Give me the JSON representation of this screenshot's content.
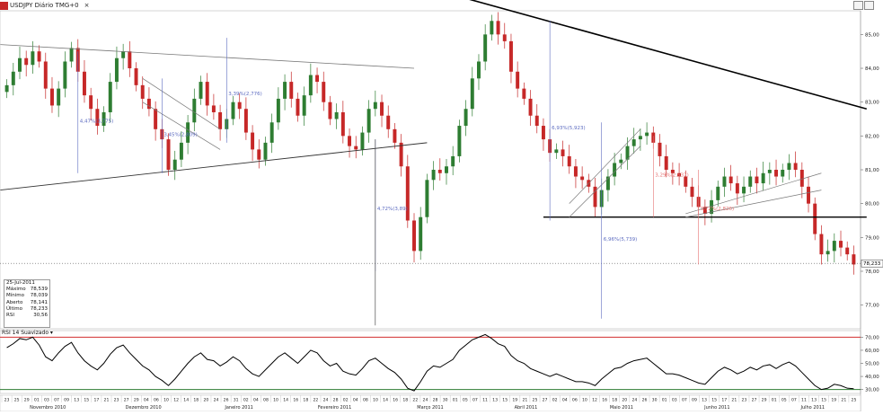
{
  "window": {
    "title": "USDJPY Diário TMG+0",
    "close_glyph": "×"
  },
  "colors": {
    "up": "#2e7d32",
    "down": "#c62828",
    "annot_blue": "#5c6bc0",
    "annot_red": "#e57373",
    "rsi_band": "#d32f2f",
    "rsi_low": "#2e7d32"
  },
  "info": {
    "date": "25-Jul-2011",
    "rows": [
      {
        "label": "Máximo",
        "value": "78,539"
      },
      {
        "label": "Mínimo",
        "value": "78,039"
      },
      {
        "label": "Aberto",
        "value": "78,141"
      },
      {
        "label": "Último",
        "value": "78,233"
      },
      {
        "label": "RSI",
        "value": "30,56"
      }
    ]
  },
  "rsi_panel": {
    "title": "RSI 14 Suavizado",
    "upper_band": "70,00",
    "lower_band": "30,00",
    "current": "30,56"
  },
  "chart_data": {
    "type": "candlestick",
    "title": "USDJPY Diário TMG+0",
    "price_axis": {
      "ticks": [
        "85,00",
        "84,00",
        "83,00",
        "82,00",
        "81,00",
        "80,00",
        "79,00",
        "78,00",
        "77,00"
      ],
      "last_label": "78,233",
      "range": [
        76.3,
        85.7
      ]
    },
    "rsi_axis": {
      "ticks": [
        "70,00",
        "60,00",
        "50,00",
        "40,00",
        "30,00"
      ],
      "range": [
        27,
        73
      ]
    },
    "day_labels": [
      "23",
      "25",
      "29",
      "01",
      "03",
      "07",
      "09",
      "13",
      "15",
      "17",
      "21",
      "23",
      "27",
      "29",
      "04",
      "06",
      "10",
      "12",
      "14",
      "18",
      "20",
      "24",
      "26",
      "31",
      "02",
      "04",
      "08",
      "10",
      "14",
      "16",
      "18",
      "22",
      "24",
      "28",
      "02",
      "04",
      "08",
      "10",
      "14",
      "16",
      "18",
      "22",
      "24",
      "28",
      "30",
      "01",
      "05",
      "07",
      "11",
      "13",
      "15",
      "19",
      "21",
      "25",
      "27",
      "02",
      "04",
      "06",
      "10",
      "12",
      "16",
      "18",
      "20",
      "24",
      "26",
      "30",
      "01",
      "03",
      "07",
      "09",
      "13",
      "15",
      "17",
      "21",
      "23",
      "27",
      "29",
      "01",
      "05",
      "07",
      "11",
      "13",
      "15",
      "19",
      "21",
      "25"
    ],
    "month_labels": [
      "Novembro 2010",
      "Dezembro 2010",
      "Janeiro 2011",
      "Fevereiro 2011",
      "Março 2011",
      "Abril 2011",
      "Maio 2011",
      "Junho 2011",
      "Julho 2011"
    ],
    "close": [
      83.5,
      83.9,
      84.3,
      84.1,
      84.5,
      84.2,
      83.4,
      82.9,
      83.4,
      84.2,
      84.6,
      83.9,
      83.2,
      82.8,
      82.3,
      82.7,
      83.6,
      84.3,
      84.5,
      84.0,
      83.5,
      83.1,
      82.8,
      82.2,
      81.9,
      81.0,
      81.3,
      81.8,
      82.4,
      83.1,
      83.6,
      82.9,
      82.7,
      82.2,
      82.5,
      83.0,
      82.8,
      82.1,
      81.6,
      81.3,
      81.8,
      82.4,
      83.1,
      83.6,
      83.1,
      82.6,
      83.2,
      83.8,
      83.6,
      83.0,
      82.5,
      82.7,
      82.0,
      81.7,
      81.6,
      82.1,
      82.8,
      83.0,
      82.6,
      82.2,
      81.8,
      81.1,
      79.5,
      78.6,
      79.6,
      80.7,
      81.0,
      80.9,
      81.1,
      81.4,
      82.3,
      82.8,
      83.7,
      84.2,
      85.0,
      85.4,
      85.0,
      84.8,
      83.9,
      83.4,
      83.1,
      82.6,
      82.3,
      81.9,
      81.5,
      81.6,
      81.4,
      81.1,
      80.8,
      80.7,
      80.5,
      79.9,
      80.4,
      80.8,
      81.2,
      81.3,
      81.7,
      81.9,
      82.0,
      82.1,
      81.8,
      81.4,
      81.0,
      80.9,
      80.8,
      80.5,
      80.2,
      79.9,
      79.7,
      80.1,
      80.5,
      80.8,
      80.6,
      80.3,
      80.5,
      80.8,
      80.6,
      80.9,
      81.0,
      80.8,
      81.0,
      81.2,
      81.0,
      80.5,
      80.0,
      79.1,
      78.5,
      78.6,
      78.9,
      78.7,
      78.5,
      78.2
    ],
    "rsi": [
      62,
      65,
      69,
      68,
      70,
      64,
      55,
      52,
      58,
      63,
      66,
      58,
      52,
      48,
      45,
      50,
      57,
      62,
      64,
      58,
      53,
      48,
      45,
      40,
      37,
      33,
      38,
      44,
      50,
      55,
      58,
      53,
      52,
      48,
      51,
      55,
      52,
      46,
      42,
      40,
      45,
      50,
      55,
      58,
      54,
      50,
      55,
      60,
      58,
      52,
      48,
      50,
      44,
      42,
      41,
      46,
      52,
      54,
      50,
      46,
      43,
      38,
      31,
      29,
      36,
      44,
      48,
      47,
      50,
      53,
      60,
      64,
      68,
      70,
      72,
      69,
      65,
      63,
      56,
      52,
      50,
      46,
      44,
      42,
      40,
      42,
      40,
      38,
      36,
      36,
      35,
      33,
      38,
      42,
      46,
      47,
      50,
      52,
      53,
      54,
      50,
      46,
      42,
      42,
      41,
      39,
      37,
      35,
      34,
      39,
      44,
      47,
      45,
      42,
      44,
      47,
      45,
      48,
      49,
      46,
      49,
      51,
      48,
      43,
      38,
      33,
      30,
      31,
      34,
      33,
      31,
      30.6
    ],
    "annotations": [
      "4,47%(3,775)",
      "3,45%(2,809)",
      "3,39%(2,776)",
      "4,72%(3,89)",
      "6,93%(5,923)",
      "6,96%(5,739)",
      "3,29%(2,537)",
      "3,72%(2,826)"
    ]
  }
}
